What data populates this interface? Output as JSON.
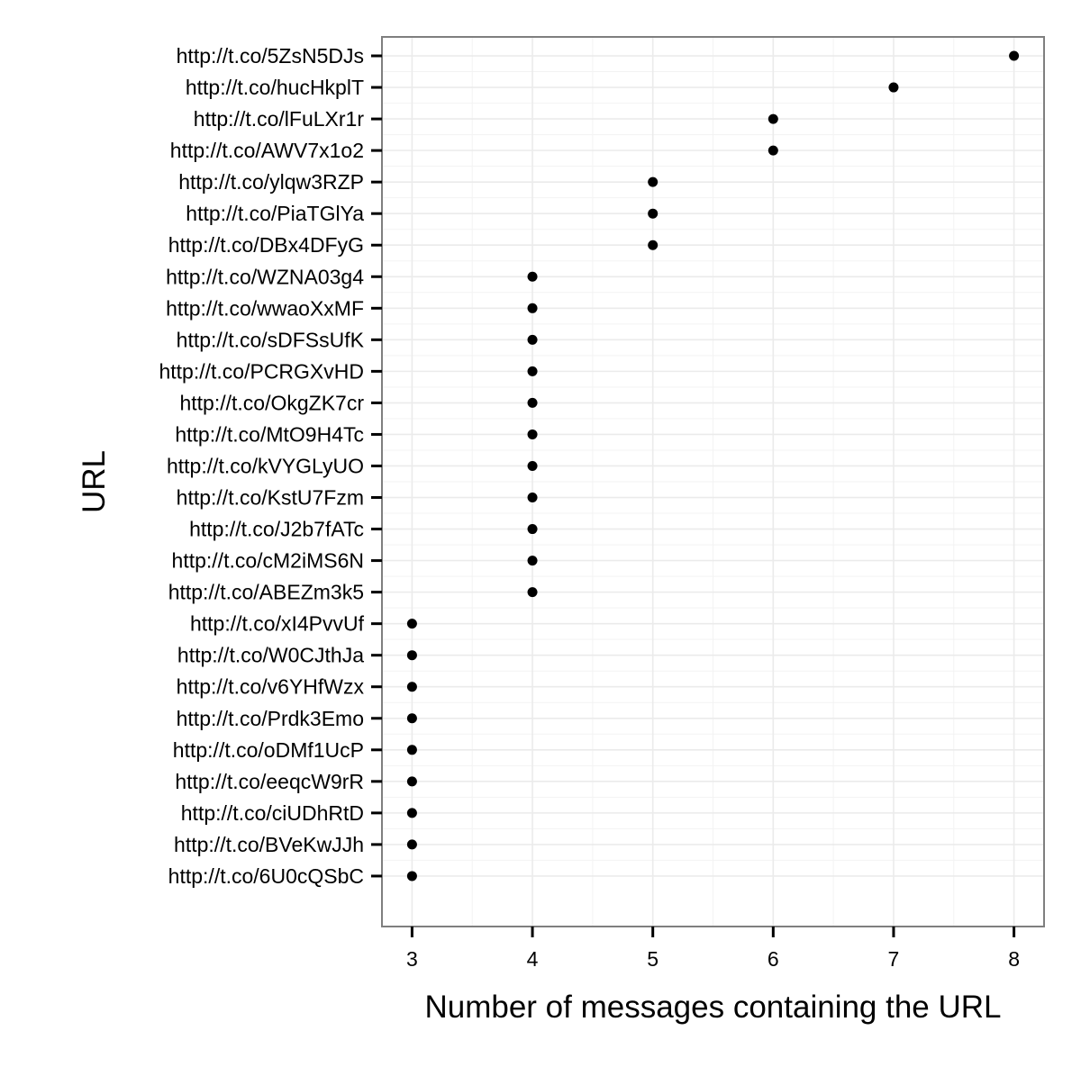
{
  "chart_data": {
    "type": "scatter",
    "title": "",
    "xlabel": "Number of messages containing the URL",
    "ylabel": "URL",
    "xlim": [
      2.75,
      8.25
    ],
    "x_ticks": [
      3,
      4,
      5,
      6,
      7,
      8
    ],
    "x_tick_labels": [
      "3",
      "4",
      "5",
      "6",
      "7",
      "8"
    ],
    "grid": true,
    "theme_colors": {
      "point": "#000000",
      "panel_border": "#7f7f7f",
      "grid_major": "#ebebeb",
      "grid_minor": "#f3f3f3",
      "axis_text": "#000000"
    },
    "categories": [
      "http://t.co/5ZsN5DJs",
      "http://t.co/hucHkplT",
      "http://t.co/lFuLXr1r",
      "http://t.co/AWV7x1o2",
      "http://t.co/ylqw3RZP",
      "http://t.co/PiaTGlYa",
      "http://t.co/DBx4DFyG",
      "http://t.co/WZNA03g4",
      "http://t.co/wwaoXxMF",
      "http://t.co/sDFSsUfK",
      "http://t.co/PCRGXvHD",
      "http://t.co/OkgZK7cr",
      "http://t.co/MtO9H4Tc",
      "http://t.co/kVYGLyUO",
      "http://t.co/KstU7Fzm",
      "http://t.co/J2b7fATc",
      "http://t.co/cM2iMS6N",
      "http://t.co/ABEZm3k5",
      "http://t.co/xI4PvvUf",
      "http://t.co/W0CJthJa",
      "http://t.co/v6YHfWzx",
      "http://t.co/Prdk3Emo",
      "http://t.co/oDMf1UcP",
      "http://t.co/eeqcW9rR",
      "http://t.co/ciUDhRtD",
      "http://t.co/BVeKwJJh",
      "http://t.co/6U0cQSbC"
    ],
    "values": [
      8,
      7,
      6,
      6,
      5,
      5,
      5,
      4,
      4,
      4,
      4,
      4,
      4,
      4,
      4,
      4,
      4,
      4,
      3,
      3,
      3,
      3,
      3,
      3,
      3,
      3,
      3
    ]
  }
}
